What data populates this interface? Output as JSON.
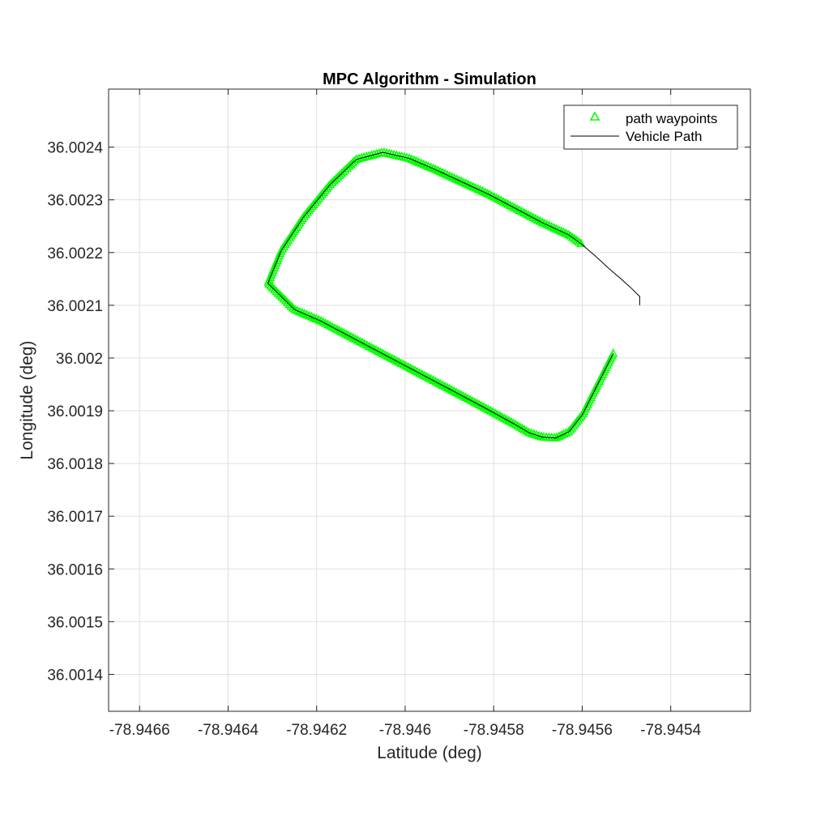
{
  "chart_data": {
    "type": "line",
    "title": "MPC Algorithm - Simulation",
    "xlabel": "Latitude (deg)",
    "ylabel": "Longitude (deg)",
    "xlim": [
      -78.94667,
      -78.94522
    ],
    "ylim": [
      36.00133,
      36.00251
    ],
    "x_ticks": [
      -78.9466,
      -78.9464,
      -78.9462,
      -78.946,
      -78.9458,
      -78.9456,
      -78.9454
    ],
    "x_tick_labels": [
      "-78.9466",
      "-78.9464",
      "-78.9462",
      "-78.946",
      "-78.9458",
      "-78.9456",
      "-78.9454"
    ],
    "y_ticks": [
      36.0014,
      36.0015,
      36.0016,
      36.0017,
      36.0018,
      36.0019,
      36.002,
      36.0021,
      36.0022,
      36.0023,
      36.0024
    ],
    "y_tick_labels": [
      "36.0014",
      "36.0015",
      "36.0016",
      "36.0017",
      "36.0018",
      "36.0019",
      "36.002",
      "36.0021",
      "36.0022",
      "36.0023",
      "36.0024"
    ],
    "grid": true,
    "legend_position": "top-right",
    "series": [
      {
        "name": "path waypoints",
        "marker": "triangle",
        "color": "#00ff00",
        "x": [
          -78.94553,
          -78.94556,
          -78.94559,
          -78.9456,
          -78.94563,
          -78.94566,
          -78.94569,
          -78.94572,
          -78.94575,
          -78.94579,
          -78.94583,
          -78.94589,
          -78.94595,
          -78.94601,
          -78.94607,
          -78.94613,
          -78.94619,
          -78.94625,
          -78.94631,
          -78.94628,
          -78.94623,
          -78.94617,
          -78.94611,
          -78.94605,
          -78.94599,
          -78.94593,
          -78.94587,
          -78.94581,
          -78.94575,
          -78.94569,
          -78.94563,
          -78.9456
        ],
        "y": [
          36.0020083,
          36.0019583,
          36.0019083,
          36.0018917,
          36.00186,
          36.0018483,
          36.00185,
          36.0018583,
          36.0018733,
          36.0018917,
          36.00191,
          36.0019367,
          36.0019633,
          36.00199,
          36.0020167,
          36.0020433,
          36.00207,
          36.0020917,
          36.0021417,
          36.0022033,
          36.0022667,
          36.0023283,
          36.0023767,
          36.00239,
          36.0023783,
          36.0023567,
          36.0023333,
          36.00231,
          36.0022833,
          36.0022567,
          36.0022333,
          36.002215
        ]
      },
      {
        "name": "Vehicle Path",
        "color": "#000000",
        "x": [
          -78.94553,
          -78.94556,
          -78.94559,
          -78.9456,
          -78.94563,
          -78.94566,
          -78.94569,
          -78.94572,
          -78.94575,
          -78.94579,
          -78.94583,
          -78.94589,
          -78.94595,
          -78.94601,
          -78.94607,
          -78.94613,
          -78.94619,
          -78.94625,
          -78.94631,
          -78.94628,
          -78.94623,
          -78.94617,
          -78.94611,
          -78.94605,
          -78.94599,
          -78.94593,
          -78.94587,
          -78.94581,
          -78.94575,
          -78.94569,
          -78.94563,
          -78.9456,
          -78.94557,
          -78.94554,
          -78.94551,
          -78.94549,
          -78.94547,
          -78.94547
        ],
        "y": [
          36.0020083,
          36.0019583,
          36.0019083,
          36.0018917,
          36.00186,
          36.0018483,
          36.00185,
          36.0018583,
          36.0018733,
          36.0018917,
          36.00191,
          36.0019367,
          36.0019633,
          36.00199,
          36.0020167,
          36.0020433,
          36.00207,
          36.0020917,
          36.0021417,
          36.0022033,
          36.0022667,
          36.0023283,
          36.0023767,
          36.00239,
          36.0023783,
          36.0023567,
          36.0023333,
          36.00231,
          36.0022833,
          36.0022567,
          36.0022333,
          36.002215,
          36.0021933,
          36.00217,
          36.0021483,
          36.0021333,
          36.0021167,
          36.0021
        ]
      }
    ]
  }
}
